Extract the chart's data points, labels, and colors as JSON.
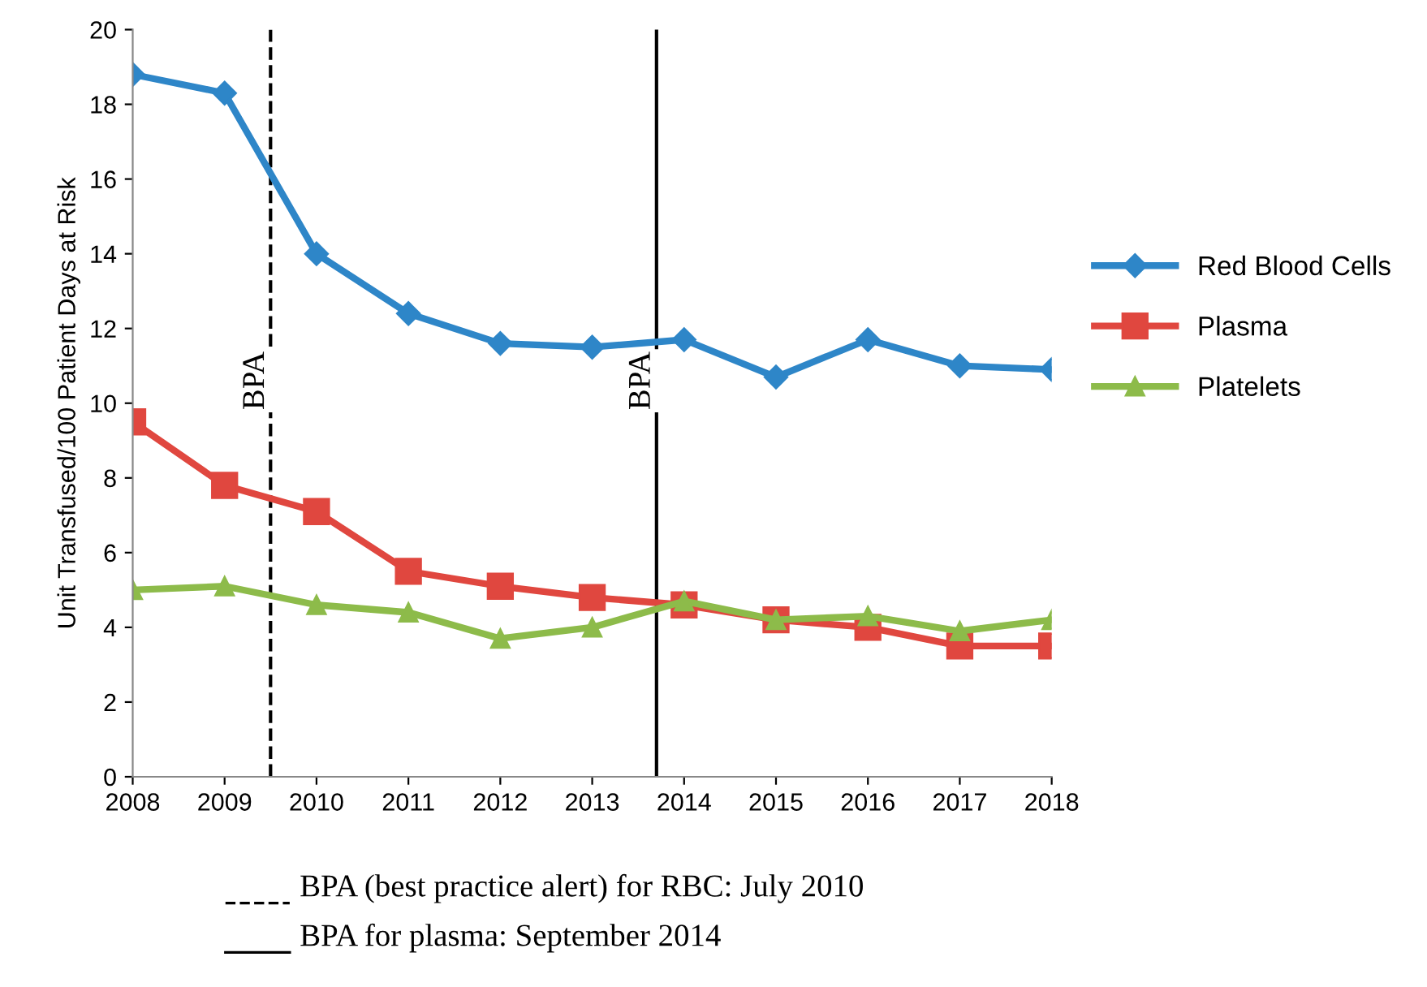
{
  "chart_data": {
    "type": "line",
    "ylabel": "Unit Transfused/100 Patient Days at Risk",
    "x": [
      2008,
      2009,
      2010,
      2011,
      2012,
      2013,
      2014,
      2015,
      2016,
      2017,
      2018
    ],
    "series": [
      {
        "name": "Red Blood Cells",
        "color": "#2e86c8",
        "marker": "diamond",
        "values": [
          18.8,
          18.3,
          14.0,
          12.4,
          11.6,
          11.5,
          11.7,
          10.7,
          11.7,
          11.0,
          10.9
        ]
      },
      {
        "name": "Plasma",
        "color": "#e0473f",
        "marker": "square",
        "values": [
          9.5,
          7.8,
          7.1,
          5.5,
          5.1,
          4.8,
          4.6,
          4.2,
          4.0,
          3.5,
          3.5
        ]
      },
      {
        "name": "Platelets",
        "color": "#8dbb4a",
        "marker": "triangle",
        "values": [
          5.0,
          5.1,
          4.6,
          4.4,
          3.7,
          4.0,
          4.7,
          4.2,
          4.3,
          3.9,
          4.2
        ]
      }
    ],
    "xlim": [
      2008,
      2018
    ],
    "xticks": [
      2008,
      2009,
      2010,
      2011,
      2012,
      2013,
      2014,
      2015,
      2016,
      2017,
      2018
    ],
    "ylim": [
      0,
      20
    ],
    "yticks": [
      0,
      2,
      4,
      6,
      8,
      10,
      12,
      14,
      16,
      18,
      20
    ],
    "ref_lines": [
      {
        "axis": "x",
        "value": 2009.5,
        "label": "BPA",
        "color": "#000000",
        "line_style": "dashed"
      },
      {
        "axis": "x",
        "value": 2013.7,
        "label": "BPA",
        "color": "#000000",
        "line_style": "solid"
      }
    ],
    "annotations": [
      "BPA (best practice alert) for RBC: July 2010",
      "BPA for plasma: September 2014"
    ],
    "grid": false,
    "legend": "right",
    "line_style": "solid"
  }
}
